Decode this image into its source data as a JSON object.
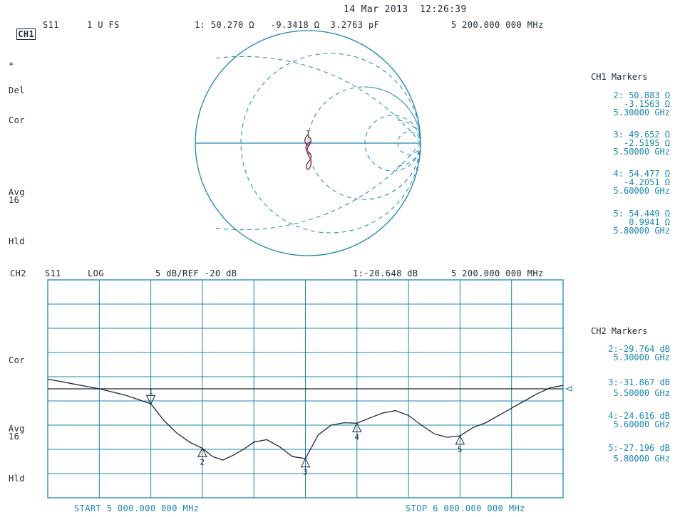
{
  "header": {
    "datetime": "14 Mar 2013  12:26:39",
    "ch1_label": "CH1",
    "ch1_param": "S11",
    "ch1_format": "1 U FS",
    "ch1_marker_readout": "1: 50.270 Ω   -9.3418 Ω  3.2763 pF",
    "ch1_freq": "5 200.000 000 MHz"
  },
  "left_annotations_ch1": [
    "*",
    "Del",
    "Cor",
    "Avg\n16",
    "Hld"
  ],
  "left_annotations_ch2": [
    "Cor",
    "Avg\n16",
    "Hld"
  ],
  "ch1_markers": {
    "title": "CH1 Markers",
    "items": [
      {
        "id": "2",
        "line1": "2: 50.883 Ω",
        "line2": "-3.1563 Ω",
        "line3": "5.30000 GHz"
      },
      {
        "id": "3",
        "line1": "3: 49.652 Ω",
        "line2": "-2.5195 Ω",
        "line3": "5.50000 GHz"
      },
      {
        "id": "4",
        "line1": "4: 54.477 Ω",
        "line2": "-4.2051 Ω",
        "line3": "5.60000 GHz"
      },
      {
        "id": "5",
        "line1": "5: 54.449 Ω",
        "line2": "0.9941 Ω",
        "line3": "5.80000 GHz"
      }
    ]
  },
  "ch2_header": {
    "label": "CH2",
    "param": "S11",
    "format": "LOG",
    "scale": "5 dB/REF -20 dB",
    "marker_readout": "1:-20.648 dB",
    "freq": "5 200.000 000 MHz"
  },
  "ch2_markers": {
    "title": "CH2 Markers",
    "items": [
      {
        "id": "2",
        "line1": "2:-29.764 dB",
        "line2": "5.30000 GHz"
      },
      {
        "id": "3",
        "line1": "3:-31.867 dB",
        "line2": "5.50000 GHz"
      },
      {
        "id": "4",
        "line1": "4:-24.616 dB",
        "line2": "5.60000 GHz"
      },
      {
        "id": "5",
        "line1": "5:-27.196 dB",
        "line2": "5.80000 GHz"
      }
    ]
  },
  "footer": {
    "start": "START 5 000.000 000 MHz",
    "stop": "STOP 6 000.000 000 MHz"
  },
  "colors": {
    "trace": "#1b86b0",
    "grid": "#1b86b0",
    "dark": "#1e2830",
    "smith_trace": "#8a3a5a"
  },
  "chart_data": {
    "type": "line",
    "x_unit": "MHz",
    "y_unit": "dB",
    "xlim": [
      5000,
      6000
    ],
    "ylim": [
      -40,
      5
    ],
    "reference_dB": -20,
    "scale_dB_per_div": 5,
    "grid_divisions": {
      "x": 10,
      "y": 9
    },
    "series": [
      {
        "x": [
          5000,
          5050,
          5100,
          5150,
          5200,
          5225,
          5250,
          5275,
          5300,
          5320,
          5340,
          5360,
          5380,
          5400,
          5425,
          5450,
          5475,
          5500,
          5525,
          5550,
          5575,
          5600,
          5625,
          5650,
          5675,
          5700,
          5725,
          5750,
          5775,
          5800,
          5825,
          5850,
          5875,
          5900,
          5925,
          5950,
          5975,
          6000
        ],
        "y": [
          -15.5,
          -16.5,
          -17.5,
          -18.8,
          -20.6,
          -24.0,
          -26.6,
          -28.5,
          -29.8,
          -31.5,
          -32.2,
          -31.2,
          -30.0,
          -28.5,
          -28.0,
          -29.5,
          -31.5,
          -31.9,
          -27.0,
          -25.0,
          -24.5,
          -24.6,
          -23.5,
          -22.5,
          -22.0,
          -23.0,
          -25.0,
          -26.8,
          -27.5,
          -27.2,
          -25.5,
          -24.5,
          -23.0,
          -21.5,
          -20.0,
          -18.5,
          -17.3,
          -16.8
        ]
      }
    ],
    "markers": [
      {
        "id": "1",
        "x": 5200,
        "y": -20.648
      },
      {
        "id": "2",
        "x": 5300,
        "y": -29.764
      },
      {
        "id": "3",
        "x": 5500,
        "y": -31.867
      },
      {
        "id": "4",
        "x": 5600,
        "y": -24.616
      },
      {
        "id": "5",
        "x": 5800,
        "y": -27.196
      }
    ]
  }
}
